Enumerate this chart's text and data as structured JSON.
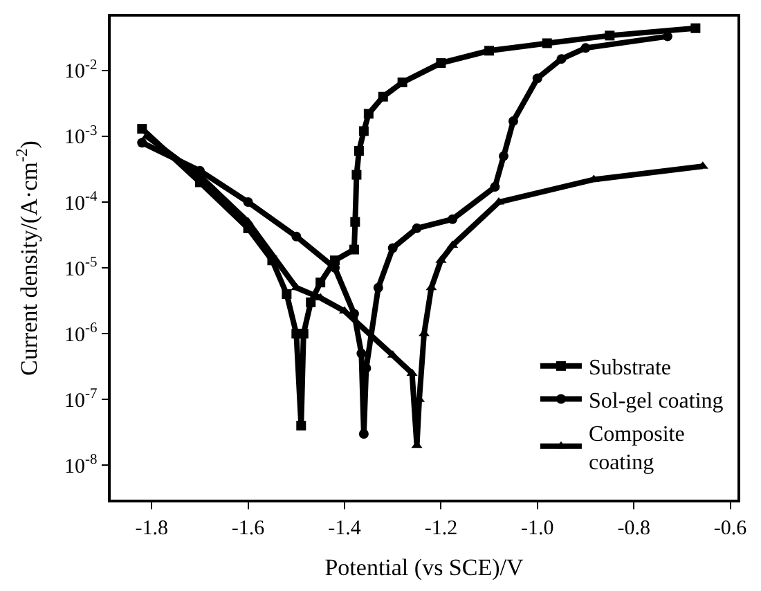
{
  "chart_data": {
    "type": "line",
    "xlabel": "Potential (vs SCE)/V",
    "ylabel": "Current density/(A·cm$^{-2}$)",
    "log": "y",
    "xlim": [
      -1.885,
      -0.585
    ],
    "ylim": [
      3e-09,
      0.066
    ],
    "xticks": [
      -1.8,
      -1.6,
      -1.4,
      -1.2,
      {
        "value": -1.0,
        "label": "-1.0"
      },
      -0.8,
      -0.6
    ],
    "yticks": [
      {
        "value": 1e-08,
        "label": "10$^{-8}$"
      },
      {
        "value": 1e-07,
        "label": "10$^{-7}$"
      },
      {
        "value": 1e-06,
        "label": "10$^{-6}$"
      },
      {
        "value": 1e-05,
        "label": "10$^{-5}$"
      },
      {
        "value": 0.0001,
        "label": "10$^{-4}$"
      },
      {
        "value": 0.001,
        "label": "10$^{-3}$"
      },
      {
        "value": 0.01,
        "label": "10$^{-2}$"
      }
    ],
    "grid": false,
    "legend": "bottom right",
    "series": [
      {
        "name": "Substrate",
        "color": "#000000",
        "marker": "square",
        "x": [
          -1.82,
          -1.7,
          -1.6,
          -1.55,
          -1.52,
          -1.5,
          -1.49,
          -1.485,
          -1.47,
          -1.45,
          -1.42,
          -1.38,
          -1.378,
          -1.375,
          -1.37,
          -1.36,
          -1.35,
          -1.32,
          -1.28,
          -1.2,
          -1.1,
          -0.98,
          -0.85,
          -0.672
        ],
        "values": [
          0.0013,
          0.0002,
          4e-05,
          1.3e-05,
          4e-06,
          1e-06,
          4e-08,
          1e-06,
          3e-06,
          6e-06,
          1.3e-05,
          1.9e-05,
          5e-05,
          0.00026,
          0.0006,
          0.0012,
          0.0022,
          0.004,
          0.0066,
          0.013,
          0.02,
          0.026,
          0.034,
          0.044
        ]
      },
      {
        "name": "Sol-gel coating",
        "color": "#000000",
        "marker": "circle",
        "x": [
          -1.82,
          -1.7,
          -1.6,
          -1.5,
          -1.42,
          -1.38,
          -1.365,
          -1.36,
          -1.355,
          -1.33,
          -1.3,
          -1.25,
          -1.176,
          -1.088,
          -1.07,
          -1.05,
          -1.0,
          -0.95,
          -0.9,
          -0.73
        ],
        "values": [
          0.0008,
          0.0003,
          0.0001,
          3e-05,
          1e-05,
          2e-06,
          5e-07,
          3e-08,
          3e-07,
          5e-06,
          2e-05,
          4e-05,
          5.5e-05,
          0.00017,
          0.0005,
          0.0017,
          0.0076,
          0.015,
          0.022,
          0.033
        ]
      },
      {
        "name": "Composite\ncoating",
        "color": "#000000",
        "marker": "triangle",
        "x": [
          -1.81,
          -1.7,
          -1.6,
          -1.5,
          -1.45,
          -1.4,
          -1.3,
          -1.26,
          -1.25,
          -1.245,
          -1.235,
          -1.22,
          -1.2,
          -1.176,
          -1.08,
          -0.883,
          -0.657
        ],
        "values": [
          0.001,
          0.00025,
          5e-05,
          5e-06,
          3.5e-06,
          2.2e-06,
          4.7e-07,
          2.5e-07,
          2e-08,
          1e-07,
          1e-06,
          5e-06,
          1.3e-05,
          2.2e-05,
          0.0001,
          0.00022,
          0.00035
        ]
      }
    ]
  }
}
